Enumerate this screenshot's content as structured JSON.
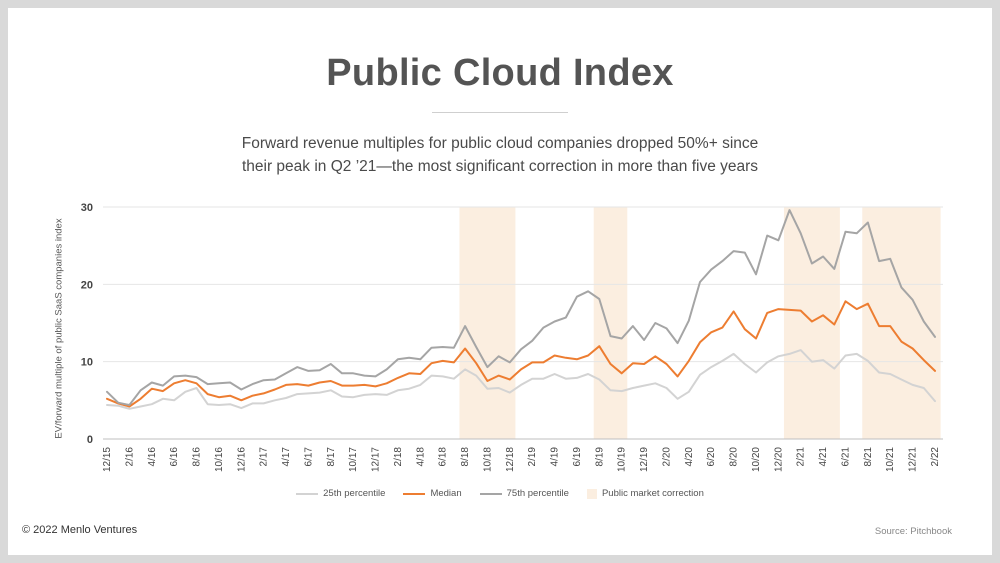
{
  "title": "Public Cloud Index",
  "subtitle_line1": "Forward revenue multiples for public cloud companies dropped 50%+ since",
  "subtitle_line2": "their peak in Q2 ’21—the most significant correction in more than five years",
  "footer": {
    "copyright": "© 2022 Menlo Ventures",
    "source": "Source: Pitchbook"
  },
  "colors": {
    "p25": "#d3d3d3",
    "median": "#ed7d31",
    "p75": "#a5a5a5",
    "correction": "#fbeee0"
  },
  "chart_data": {
    "type": "line",
    "title": "",
    "xlabel": "",
    "ylabel": "EV/forward multiple of public SaaS companies index",
    "ylim": [
      0,
      30
    ],
    "yticks": [
      0,
      10,
      20,
      30
    ],
    "grid": true,
    "legend_position": "bottom-center",
    "x": [
      "12/15",
      "1/16",
      "2/16",
      "3/16",
      "4/16",
      "5/16",
      "6/16",
      "7/16",
      "8/16",
      "9/16",
      "10/16",
      "11/16",
      "12/16",
      "1/17",
      "2/17",
      "3/17",
      "4/17",
      "5/17",
      "6/17",
      "7/17",
      "8/17",
      "9/17",
      "10/17",
      "11/17",
      "12/17",
      "1/18",
      "2/18",
      "3/18",
      "4/18",
      "5/18",
      "6/18",
      "7/18",
      "8/18",
      "9/18",
      "10/18",
      "11/18",
      "12/18",
      "1/19",
      "2/19",
      "3/19",
      "4/19",
      "5/19",
      "6/19",
      "7/19",
      "8/19",
      "9/19",
      "10/19",
      "11/19",
      "12/19",
      "1/20",
      "2/20",
      "3/20",
      "4/20",
      "5/20",
      "6/20",
      "7/20",
      "8/20",
      "9/20",
      "10/20",
      "11/20",
      "12/20",
      "1/21",
      "2/21",
      "3/21",
      "4/21",
      "5/21",
      "6/21",
      "7/21",
      "8/21",
      "9/21",
      "10/21",
      "11/21",
      "12/21",
      "1/22",
      "2/22"
    ],
    "x_tick_labels": [
      "12/15",
      "2/16",
      "4/16",
      "6/16",
      "8/16",
      "10/16",
      "12/16",
      "2/17",
      "4/17",
      "6/17",
      "8/17",
      "10/17",
      "12/17",
      "2/18",
      "4/18",
      "6/18",
      "8/18",
      "10/18",
      "12/18",
      "2/19",
      "4/19",
      "6/19",
      "8/19",
      "10/19",
      "12/19",
      "2/20",
      "4/20",
      "6/20",
      "8/20",
      "10/20",
      "12/20",
      "2/21",
      "4/21",
      "6/21",
      "8/21",
      "10/21",
      "12/21",
      "2/22"
    ],
    "series": [
      {
        "name": "25th percentile",
        "values": [
          4.4,
          4.3,
          3.9,
          4.2,
          4.5,
          5.2,
          5.0,
          6.1,
          6.6,
          4.5,
          4.4,
          4.5,
          4.0,
          4.6,
          4.6,
          5.0,
          5.3,
          5.8,
          5.9,
          6.0,
          6.3,
          5.5,
          5.4,
          5.7,
          5.8,
          5.7,
          6.3,
          6.5,
          7.0,
          8.2,
          8.1,
          7.8,
          9.0,
          8.2,
          6.5,
          6.6,
          6.0,
          7.0,
          7.8,
          7.8,
          8.4,
          7.8,
          7.9,
          8.4,
          7.7,
          6.3,
          6.2,
          6.6,
          6.9,
          7.2,
          6.6,
          5.2,
          6.1,
          8.3,
          9.3,
          10.1,
          11.0,
          9.7,
          8.6,
          9.9,
          10.7,
          11.0,
          11.5,
          10.0,
          10.2,
          9.1,
          10.8,
          11.0,
          10.1,
          8.6,
          8.4,
          7.7,
          7.0,
          6.6,
          4.9
        ]
      },
      {
        "name": "Median",
        "values": [
          5.2,
          4.6,
          4.2,
          5.2,
          6.5,
          6.2,
          7.2,
          7.6,
          7.2,
          5.8,
          5.4,
          5.6,
          5.0,
          5.6,
          5.9,
          6.4,
          7.0,
          7.1,
          6.9,
          7.3,
          7.5,
          6.9,
          6.9,
          7.0,
          6.8,
          7.2,
          7.9,
          8.5,
          8.4,
          9.8,
          10.1,
          9.9,
          11.7,
          9.8,
          7.5,
          8.2,
          7.7,
          9.0,
          9.9,
          9.9,
          10.8,
          10.5,
          10.3,
          10.8,
          12.0,
          9.7,
          8.5,
          9.8,
          9.7,
          10.7,
          9.7,
          8.1,
          10.1,
          12.5,
          13.8,
          14.4,
          16.5,
          14.2,
          13.0,
          16.3,
          16.8,
          16.7,
          16.6,
          15.2,
          16.0,
          14.8,
          17.8,
          16.8,
          17.5,
          14.6,
          14.6,
          12.6,
          11.7,
          10.2,
          8.8
        ]
      },
      {
        "name": "75th percentile",
        "values": [
          6.1,
          4.7,
          4.4,
          6.3,
          7.3,
          6.9,
          8.1,
          8.2,
          8.0,
          7.1,
          7.2,
          7.3,
          6.4,
          7.1,
          7.6,
          7.7,
          8.5,
          9.3,
          8.8,
          8.9,
          9.7,
          8.5,
          8.5,
          8.2,
          8.1,
          9.0,
          10.3,
          10.5,
          10.3,
          11.8,
          11.9,
          11.8,
          14.6,
          11.9,
          9.3,
          10.7,
          9.9,
          11.6,
          12.7,
          14.4,
          15.2,
          15.7,
          18.4,
          19.1,
          18.1,
          13.3,
          13.0,
          14.6,
          12.8,
          15.0,
          14.3,
          12.4,
          15.3,
          20.3,
          21.9,
          23.0,
          24.3,
          24.1,
          21.3,
          26.3,
          25.7,
          29.6,
          26.6,
          22.7,
          23.6,
          22.0,
          26.8,
          26.6,
          28.0,
          23.0,
          23.3,
          19.6,
          18.0,
          15.2,
          13.2
        ]
      },
      {
        "name": "Public market correction",
        "type": "shaded-periods",
        "values": [
          [
            "8/18",
            "12/18"
          ],
          [
            "8/19",
            "10/19"
          ],
          [
            "1/21",
            "5/21"
          ],
          [
            "8/21",
            "2/22"
          ]
        ]
      }
    ]
  }
}
